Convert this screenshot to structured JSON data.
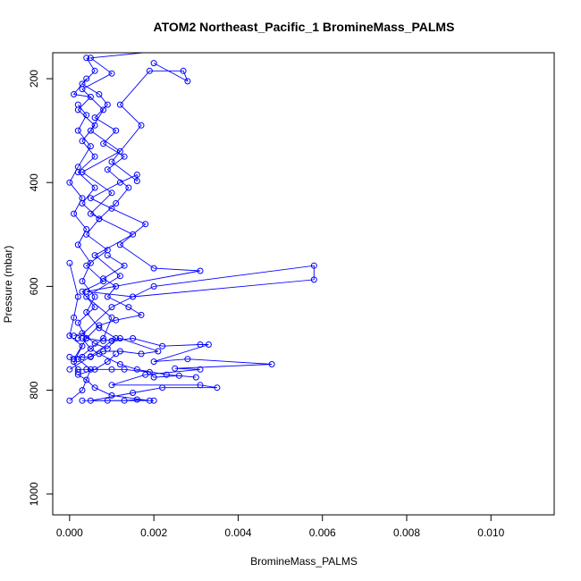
{
  "chart_data": {
    "type": "line",
    "title": "ATOM2 Northeast_Pacific_1 BromineMass_PALMS",
    "xlabel": "BromineMass_PALMS",
    "ylabel": "Pressure (mbar)",
    "xlim": [
      -0.0004,
      0.0115
    ],
    "ylim": [
      1040,
      150
    ],
    "y_inverted": true,
    "x_ticks": [
      0,
      0.002,
      0.004,
      0.006,
      0.008,
      0.01
    ],
    "x_tick_labels": [
      "0.000",
      "0.002",
      "0.004",
      "0.006",
      "0.008",
      "0.010"
    ],
    "y_ticks": [
      200,
      400,
      600,
      800,
      1000
    ],
    "y_tick_labels": [
      "200",
      "400",
      "600",
      "800",
      "1000"
    ],
    "grid": false,
    "legend": "none",
    "marker": "open-circle",
    "color": "#0000ff",
    "series": [
      {
        "values": [
          [
            0.0,
            820
          ],
          [
            0.0003,
            800
          ],
          [
            0.0005,
            760
          ],
          [
            0.0002,
            740
          ],
          [
            0.0008,
            700
          ],
          [
            0.001,
            660
          ],
          [
            0.0004,
            620
          ],
          [
            0.0012,
            580
          ],
          [
            0.0006,
            540
          ],
          [
            0.0015,
            500
          ],
          [
            0.0005,
            460
          ],
          [
            0.001,
            420
          ],
          [
            0.0003,
            380
          ],
          [
            0.0012,
            340
          ],
          [
            0.0005,
            300
          ],
          [
            0.0008,
            260
          ],
          [
            0.0003,
            220
          ],
          [
            0.001,
            190
          ],
          [
            0.0005,
            160
          ],
          [
            0.003,
            140
          ]
        ]
      },
      {
        "values": [
          [
            0.0,
            760
          ],
          [
            0.0005,
            735
          ],
          [
            0.001,
            705
          ],
          [
            0.0015,
            700
          ],
          [
            0.0022,
            715
          ],
          [
            0.0031,
            712
          ],
          [
            0.0033,
            712
          ],
          [
            0.002,
            745
          ],
          [
            0.0028,
            740
          ],
          [
            0.0048,
            750
          ],
          [
            0.0025,
            758
          ],
          [
            0.0031,
            760
          ],
          [
            0.0018,
            770
          ],
          [
            0.001,
            790
          ],
          [
            0.0031,
            790
          ],
          [
            0.0035,
            795
          ],
          [
            0.0022,
            795
          ],
          [
            0.0015,
            805
          ],
          [
            0.0005,
            820
          ],
          [
            0.002,
            820
          ]
        ]
      },
      {
        "values": [
          [
            0.0002,
            700
          ],
          [
            0.001,
            640
          ],
          [
            0.002,
            600
          ],
          [
            0.0058,
            560
          ],
          [
            0.0058,
            587
          ],
          [
            0.0015,
            620
          ],
          [
            0.0004,
            610
          ],
          [
            0.0031,
            570
          ],
          [
            0.002,
            565
          ],
          [
            0.0012,
            520
          ],
          [
            0.0018,
            480
          ],
          [
            0.001,
            450
          ],
          [
            0.0005,
            430
          ],
          [
            0.0012,
            400
          ],
          [
            0.0016,
            385
          ],
          [
            0.0016,
            397
          ],
          [
            0.001,
            360
          ],
          [
            0.0017,
            290
          ],
          [
            0.0012,
            250
          ],
          [
            0.0019,
            185
          ],
          [
            0.0027,
            185
          ],
          [
            0.0028,
            205
          ],
          [
            0.002,
            170
          ]
        ]
      },
      {
        "values": [
          [
            0.0001,
            740
          ],
          [
            0.0004,
            700
          ],
          [
            0.0002,
            670
          ],
          [
            0.0006,
            640
          ],
          [
            0.0003,
            610
          ],
          [
            0.0008,
            590
          ],
          [
            0.0004,
            560
          ],
          [
            0.0009,
            530
          ],
          [
            0.0004,
            500
          ],
          [
            0.0007,
            470
          ],
          [
            0.0003,
            440
          ],
          [
            0.0006,
            410
          ],
          [
            0.0002,
            380
          ],
          [
            0.0006,
            350
          ],
          [
            0.0003,
            320
          ],
          [
            0.0006,
            290
          ],
          [
            0.0002,
            260
          ],
          [
            0.0005,
            235
          ],
          [
            0.0001,
            230
          ],
          [
            0.0004,
            200
          ]
        ]
      },
      {
        "values": [
          [
            0.0,
            736
          ],
          [
            0.0003,
            736
          ],
          [
            0.0005,
            736
          ],
          [
            0.0008,
            725
          ],
          [
            0.0012,
            725
          ],
          [
            0.0017,
            730
          ],
          [
            0.0021,
            725
          ],
          [
            0.0012,
            700
          ],
          [
            0.0008,
            705
          ],
          [
            0.0004,
            700
          ],
          [
            0.0007,
            675
          ],
          [
            0.0011,
            665
          ],
          [
            0.0017,
            655
          ],
          [
            0.0014,
            640
          ],
          [
            0.0009,
            620
          ],
          [
            0.0011,
            600
          ],
          [
            0.0008,
            585
          ],
          [
            0.0013,
            560
          ],
          [
            0.0009,
            540
          ]
        ]
      },
      {
        "values": [
          [
            0.0001,
            695
          ],
          [
            0.0003,
            690
          ],
          [
            0.0006,
            710
          ],
          [
            0.0009,
            720
          ],
          [
            0.0011,
            700
          ],
          [
            0.0007,
            680
          ],
          [
            0.0004,
            650
          ],
          [
            0.0006,
            620
          ],
          [
            0.0003,
            590
          ],
          [
            0.0005,
            555
          ],
          [
            0.0002,
            520
          ],
          [
            0.0004,
            490
          ],
          [
            0.0001,
            460
          ],
          [
            0.0003,
            430
          ],
          [
            0.0,
            400
          ],
          [
            0.0002,
            370
          ],
          [
            0.0005,
            330
          ],
          [
            0.0002,
            300
          ],
          [
            0.0004,
            270
          ],
          [
            0.0002,
            250
          ]
        ]
      },
      {
        "values": [
          [
            0.0002,
            760
          ],
          [
            0.0004,
            760
          ],
          [
            0.001,
            760
          ],
          [
            0.0013,
            760
          ],
          [
            0.0019,
            765
          ],
          [
            0.002,
            775
          ],
          [
            0.0026,
            772
          ],
          [
            0.003,
            775
          ],
          [
            0.0023,
            770
          ],
          [
            0.0016,
            760
          ],
          [
            0.0012,
            750
          ],
          [
            0.0007,
            730
          ],
          [
            0.0005,
            720
          ],
          [
            0.0003,
            700
          ]
        ]
      },
      {
        "values": [
          [
            0.0003,
            820
          ],
          [
            0.0009,
            820
          ],
          [
            0.0013,
            820
          ],
          [
            0.0016,
            818
          ],
          [
            0.0019,
            820
          ],
          [
            0.001,
            810
          ],
          [
            0.0006,
            795
          ],
          [
            0.0004,
            780
          ],
          [
            0.0002,
            770
          ],
          [
            0.0006,
            760
          ],
          [
            0.0009,
            745
          ],
          [
            0.0011,
            730
          ]
        ]
      },
      {
        "values": [
          [
            0.0,
            555
          ],
          [
            0.0002,
            620
          ],
          [
            0.0001,
            660
          ],
          [
            0.0,
            695
          ],
          [
            0.0003,
            715
          ],
          [
            0.0001,
            745
          ],
          [
            0.0002,
            765
          ]
        ]
      },
      {
        "values": [
          [
            0.0004,
            160
          ],
          [
            0.0006,
            185
          ],
          [
            0.0003,
            210
          ],
          [
            0.0007,
            230
          ],
          [
            0.0009,
            250
          ],
          [
            0.0006,
            275
          ],
          [
            0.0011,
            300
          ],
          [
            0.0008,
            325
          ],
          [
            0.0013,
            350
          ],
          [
            0.0009,
            375
          ],
          [
            0.0014,
            410
          ],
          [
            0.0011,
            440
          ],
          [
            0.0007,
            470
          ]
        ]
      }
    ]
  }
}
